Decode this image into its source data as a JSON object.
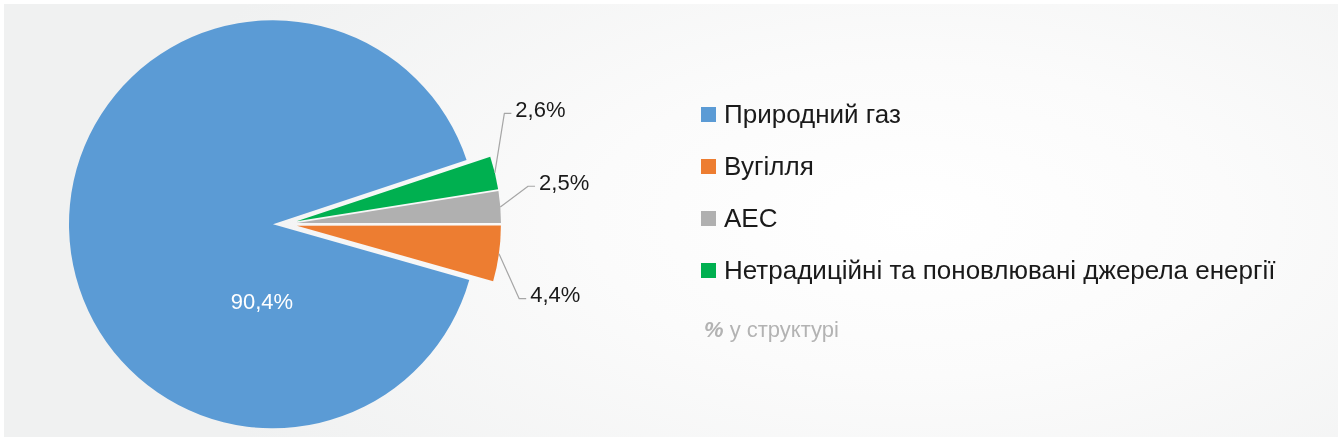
{
  "chart_data": {
    "type": "pie",
    "categories": [
      "Природний газ",
      "Вугілля",
      "АЕС",
      "Нетрадиційні та поновлювані джерела енергії"
    ],
    "values": [
      90.4,
      4.4,
      2.5,
      2.6
    ],
    "colors": [
      "#5b9bd5",
      "#ed7d31",
      "#b0b0b0",
      "#00b050"
    ],
    "value_labels": [
      "90,4%",
      "4,4%",
      "2,5%",
      "2,6%"
    ],
    "legend": "right",
    "annotations": [
      "% у структурі"
    ]
  }
}
